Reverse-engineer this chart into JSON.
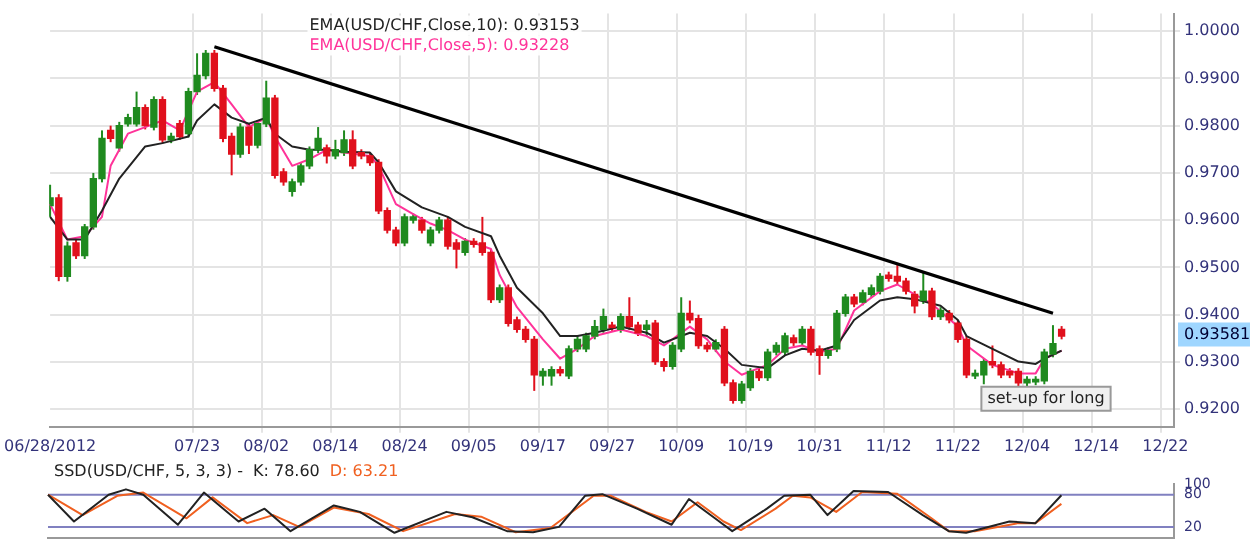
{
  "chart_data": [
    {
      "type": "candlestick",
      "legend": "top left",
      "grid": true,
      "marker": "none",
      "categories": [
        "06/28/2012",
        null,
        null,
        null,
        null,
        null,
        null,
        null,
        null,
        null,
        null,
        null,
        null,
        null,
        null,
        null,
        null,
        "07/23",
        null,
        null,
        null,
        null,
        null,
        null,
        null,
        "08/02",
        null,
        null,
        null,
        null,
        null,
        null,
        null,
        "08/14",
        null,
        null,
        null,
        null,
        null,
        null,
        null,
        "08/24",
        null,
        null,
        null,
        null,
        null,
        null,
        null,
        "09/05",
        null,
        null,
        null,
        null,
        null,
        null,
        null,
        "09/17",
        null,
        null,
        null,
        null,
        null,
        null,
        null,
        "09/27",
        null,
        null,
        null,
        null,
        null,
        null,
        null,
        "10/09",
        null,
        null,
        null,
        null,
        null,
        null,
        null,
        "10/19",
        null,
        null,
        null,
        null,
        null,
        null,
        null,
        "10/31",
        null,
        null,
        null,
        null,
        null,
        null,
        null,
        "11/12",
        null,
        null,
        null,
        null,
        null,
        null,
        null,
        "11/22",
        null,
        null,
        null,
        null,
        null,
        null,
        null,
        "12/04",
        null,
        null,
        null,
        null,
        null,
        null,
        null,
        "12/14",
        null,
        null,
        null,
        null,
        null,
        null,
        null,
        "12/22",
        null
      ],
      "ylim": [
        0.9163,
        1.0037
      ],
      "yticks": [
        {
          "value": 0.92,
          "label": "0.9200"
        },
        {
          "value": 0.93,
          "label": "0.9300"
        },
        {
          "value": 0.94,
          "label": "0.9400"
        },
        {
          "value": 0.95,
          "label": "0.9500"
        },
        {
          "value": 0.96,
          "label": "0.9600"
        },
        {
          "value": 0.97,
          "label": "0.9700"
        },
        {
          "value": 0.98,
          "label": "0.9800"
        },
        {
          "value": 0.99,
          "label": "0.9900"
        },
        {
          "value": 1.0,
          "label": "1.0000"
        }
      ],
      "ohlc": [
        [
          0.9631,
          0.9675,
          0.9607,
          0.9647
        ],
        [
          0.9647,
          0.9655,
          0.9471,
          0.9481
        ],
        [
          0.9481,
          0.9555,
          0.947,
          0.9545
        ],
        [
          0.9552,
          0.956,
          0.9518,
          0.9525
        ],
        [
          0.9525,
          0.9592,
          0.9518,
          0.9586
        ],
        [
          0.9586,
          0.97,
          0.958,
          0.9688
        ],
        [
          0.9688,
          0.979,
          0.968,
          0.9773
        ],
        [
          0.979,
          0.98,
          0.9765,
          0.9773
        ],
        [
          0.9753,
          0.9808,
          0.9745,
          0.98
        ],
        [
          0.9804,
          0.9825,
          0.9798,
          0.9817
        ],
        [
          0.9804,
          0.9872,
          0.9798,
          0.9838
        ],
        [
          0.9838,
          0.9845,
          0.9792,
          0.98
        ],
        [
          0.9797,
          0.9862,
          0.979,
          0.9855
        ],
        [
          0.9855,
          0.9862,
          0.9763,
          0.977
        ],
        [
          0.977,
          0.9785,
          0.9763,
          0.9777
        ],
        [
          0.9804,
          0.9812,
          0.977,
          0.9777
        ],
        [
          0.9783,
          0.988,
          0.9775,
          0.9872
        ],
        [
          0.9872,
          0.9953,
          0.9865,
          0.9906
        ],
        [
          0.9906,
          0.996,
          0.9898,
          0.9953
        ],
        [
          0.9953,
          0.996,
          0.9872,
          0.9879
        ],
        [
          0.9879,
          0.9886,
          0.9765,
          0.9773
        ],
        [
          0.9777,
          0.9785,
          0.9695,
          0.974
        ],
        [
          0.974,
          0.9805,
          0.9732,
          0.9797
        ],
        [
          0.9797,
          0.9805,
          0.974,
          0.9759
        ],
        [
          0.9759,
          0.9812,
          0.9752,
          0.9804
        ],
        [
          0.9804,
          0.9895,
          0.9797,
          0.9858
        ],
        [
          0.9858,
          0.9865,
          0.9688,
          0.9695
        ],
        [
          0.9702,
          0.971,
          0.9673,
          0.9681
        ],
        [
          0.9661,
          0.9688,
          0.965,
          0.9681
        ],
        [
          0.9681,
          0.9722,
          0.9673,
          0.9715
        ],
        [
          0.9715,
          0.9756,
          0.9708,
          0.9749
        ],
        [
          0.9749,
          0.9797,
          0.9742,
          0.9773
        ],
        [
          0.9753,
          0.976,
          0.972,
          0.9736
        ],
        [
          0.9736,
          0.977,
          0.9729,
          0.9749
        ],
        [
          0.9743,
          0.979,
          0.9736,
          0.977
        ],
        [
          0.977,
          0.979,
          0.9708,
          0.9715
        ],
        [
          0.9743,
          0.975,
          0.9729,
          0.9736
        ],
        [
          0.9736,
          0.9743,
          0.9715,
          0.9722
        ],
        [
          0.9722,
          0.9729,
          0.9613,
          0.962
        ],
        [
          0.962,
          0.9627,
          0.9572,
          0.9579
        ],
        [
          0.9579,
          0.9586,
          0.9545,
          0.9552
        ],
        [
          0.9552,
          0.9614,
          0.9545,
          0.9607
        ],
        [
          0.96,
          0.9614,
          0.9593,
          0.9607
        ],
        [
          0.96,
          0.9607,
          0.9572,
          0.9579
        ],
        [
          0.9552,
          0.9586,
          0.9545,
          0.9579
        ],
        [
          0.9579,
          0.9607,
          0.9572,
          0.96
        ],
        [
          0.96,
          0.9607,
          0.9538,
          0.9545
        ],
        [
          0.9552,
          0.956,
          0.9498,
          0.9539
        ],
        [
          0.9532,
          0.9562,
          0.9525,
          0.9555
        ],
        [
          0.9555,
          0.9562,
          0.9542,
          0.9549
        ],
        [
          0.9552,
          0.9607,
          0.9525,
          0.9532
        ],
        [
          0.9532,
          0.9539,
          0.9425,
          0.9432
        ],
        [
          0.9432,
          0.9464,
          0.9425,
          0.9457
        ],
        [
          0.9457,
          0.9464,
          0.9375,
          0.9382
        ],
        [
          0.9389,
          0.9396,
          0.9362,
          0.9369
        ],
        [
          0.9369,
          0.9376,
          0.9341,
          0.9348
        ],
        [
          0.9348,
          0.9355,
          0.9239,
          0.9273
        ],
        [
          0.9271,
          0.9287,
          0.925,
          0.928
        ],
        [
          0.9271,
          0.9291,
          0.925,
          0.9284
        ],
        [
          0.9284,
          0.9291,
          0.927,
          0.9277
        ],
        [
          0.9271,
          0.9335,
          0.9264,
          0.9328
        ],
        [
          0.9328,
          0.9355,
          0.9321,
          0.9348
        ],
        [
          0.9328,
          0.9362,
          0.9321,
          0.9355
        ],
        [
          0.9355,
          0.9389,
          0.9348,
          0.9375
        ],
        [
          0.9369,
          0.9413,
          0.9362,
          0.9396
        ],
        [
          0.9378,
          0.9385,
          0.9366,
          0.9373
        ],
        [
          0.9369,
          0.9403,
          0.9362,
          0.9396
        ],
        [
          0.9396,
          0.9437,
          0.9368,
          0.9375
        ],
        [
          0.9378,
          0.9385,
          0.9355,
          0.9362
        ],
        [
          0.9369,
          0.9389,
          0.9355,
          0.9378
        ],
        [
          0.9382,
          0.9389,
          0.9294,
          0.9301
        ],
        [
          0.9301,
          0.9308,
          0.928,
          0.9291
        ],
        [
          0.9291,
          0.9342,
          0.9284,
          0.9335
        ],
        [
          0.9328,
          0.9437,
          0.9321,
          0.9403
        ],
        [
          0.9403,
          0.943,
          0.9382,
          0.9389
        ],
        [
          0.9392,
          0.94,
          0.9328,
          0.9335
        ],
        [
          0.9335,
          0.9342,
          0.9321,
          0.9328
        ],
        [
          0.9328,
          0.9348,
          0.9321,
          0.9341
        ],
        [
          0.9369,
          0.9376,
          0.9249,
          0.9256
        ],
        [
          0.9256,
          0.9263,
          0.9212,
          0.9219
        ],
        [
          0.9219,
          0.926,
          0.9212,
          0.9253
        ],
        [
          0.9246,
          0.9287,
          0.9239,
          0.928
        ],
        [
          0.928,
          0.9287,
          0.926,
          0.9267
        ],
        [
          0.9267,
          0.9328,
          0.926,
          0.9321
        ],
        [
          0.9321,
          0.9342,
          0.9314,
          0.9335
        ],
        [
          0.9321,
          0.9362,
          0.9314,
          0.9355
        ],
        [
          0.9351,
          0.9358,
          0.9334,
          0.9341
        ],
        [
          0.9341,
          0.9376,
          0.9334,
          0.9369
        ],
        [
          0.9369,
          0.9376,
          0.9314,
          0.9321
        ],
        [
          0.9328,
          0.9335,
          0.9273,
          0.9314
        ],
        [
          0.9314,
          0.9331,
          0.9307,
          0.9324
        ],
        [
          0.9328,
          0.941,
          0.9321,
          0.9403
        ],
        [
          0.9403,
          0.9444,
          0.9396,
          0.9437
        ],
        [
          0.9437,
          0.9444,
          0.9416,
          0.9423
        ],
        [
          0.9427,
          0.9453,
          0.942,
          0.9446
        ],
        [
          0.9443,
          0.9464,
          0.9436,
          0.9457
        ],
        [
          0.945,
          0.9488,
          0.9443,
          0.9481
        ],
        [
          0.9484,
          0.9491,
          0.947,
          0.9477
        ],
        [
          0.9481,
          0.9505,
          0.9464,
          0.9471
        ],
        [
          0.9471,
          0.9478,
          0.9443,
          0.945
        ],
        [
          0.9443,
          0.945,
          0.9403,
          0.9419
        ],
        [
          0.943,
          0.9491,
          0.9423,
          0.945
        ],
        [
          0.945,
          0.9457,
          0.9389,
          0.9396
        ],
        [
          0.9396,
          0.9416,
          0.9389,
          0.9409
        ],
        [
          0.9403,
          0.941,
          0.9382,
          0.9389
        ],
        [
          0.9382,
          0.9389,
          0.9341,
          0.9348
        ],
        [
          0.9348,
          0.9355,
          0.9266,
          0.9273
        ],
        [
          0.9271,
          0.9284,
          0.9264,
          0.9276
        ],
        [
          0.9273,
          0.9308,
          0.9253,
          0.9301
        ],
        [
          0.9301,
          0.9335,
          0.9287,
          0.9294
        ],
        [
          0.9294,
          0.9301,
          0.9266,
          0.9273
        ],
        [
          0.928,
          0.9287,
          0.9266,
          0.9273
        ],
        [
          0.928,
          0.9287,
          0.9249,
          0.9256
        ],
        [
          0.9256,
          0.927,
          0.9249,
          0.9263
        ],
        [
          0.9258,
          0.927,
          0.9251,
          0.9263
        ],
        [
          0.926,
          0.9328,
          0.9253,
          0.9321
        ],
        [
          0.9317,
          0.9378,
          0.931,
          0.9339
        ],
        [
          0.9369,
          0.9376,
          0.9348,
          0.9355
        ],
        null,
        null,
        null,
        null,
        null,
        null,
        null,
        null,
        null,
        null,
        null,
        null,
        null
      ],
      "colors": [
        "#1f8a1f",
        "#e0101c",
        "#1f8a1f",
        "#e0101c",
        "#1f8a1f",
        "#1f8a1f",
        "#1f8a1f",
        "#e0101c",
        "#1f8a1f",
        "#1f8a1f",
        "#1f8a1f",
        "#e0101c",
        "#1f8a1f",
        "#e0101c",
        "#1f8a1f",
        "#e0101c",
        "#1f8a1f",
        "#1f8a1f",
        "#1f8a1f",
        "#e0101c",
        "#e0101c",
        "#e0101c",
        "#1f8a1f",
        "#e0101c",
        "#1f8a1f",
        "#1f8a1f",
        "#e0101c",
        "#e0101c",
        "#1f8a1f",
        "#1f8a1f",
        "#1f8a1f",
        "#1f8a1f",
        "#e0101c",
        "#1f8a1f",
        "#1f8a1f",
        "#e0101c",
        "#e0101c",
        "#e0101c",
        "#e0101c",
        "#e0101c",
        "#e0101c",
        "#1f8a1f",
        "#1f8a1f",
        "#e0101c",
        "#1f8a1f",
        "#1f8a1f",
        "#e0101c",
        "#e0101c",
        "#1f8a1f",
        "#e0101c",
        "#e0101c",
        "#e0101c",
        "#1f8a1f",
        "#e0101c",
        "#e0101c",
        "#e0101c",
        "#e0101c",
        "#1f8a1f",
        "#1f8a1f",
        "#e0101c",
        "#1f8a1f",
        "#1f8a1f",
        "#1f8a1f",
        "#1f8a1f",
        "#1f8a1f",
        "#e0101c",
        "#1f8a1f",
        "#e0101c",
        "#e0101c",
        "#1f8a1f",
        "#e0101c",
        "#e0101c",
        "#1f8a1f",
        "#1f8a1f",
        "#e0101c",
        "#e0101c",
        "#e0101c",
        "#1f8a1f",
        "#e0101c",
        "#e0101c",
        "#1f8a1f",
        "#1f8a1f",
        "#e0101c",
        "#1f8a1f",
        "#1f8a1f",
        "#1f8a1f",
        "#e0101c",
        "#1f8a1f",
        "#e0101c",
        "#e0101c",
        "#1f8a1f",
        "#1f8a1f",
        "#1f8a1f",
        "#e0101c",
        "#1f8a1f",
        "#1f8a1f",
        "#1f8a1f",
        "#e0101c",
        "#e0101c",
        "#e0101c",
        "#e0101c",
        "#1f8a1f",
        "#e0101c",
        "#1f8a1f",
        "#e0101c",
        "#e0101c",
        "#e0101c",
        "#1f8a1f",
        "#1f8a1f",
        "#e0101c",
        "#e0101c",
        "#e0101c",
        "#e0101c",
        "#1f8a1f",
        "#1f8a1f",
        "#1f8a1f",
        "#1f8a1f",
        "#e0101c",
        null,
        null,
        null,
        null,
        null,
        null,
        null,
        null,
        null,
        null,
        null,
        null,
        null
      ],
      "series": [
        {
          "name": "EMA(USD/CHF,Close,10): 0.93153",
          "color": "#222222",
          "type": "line",
          "values": [
            0.9607,
            null,
            0.9559,
            null,
            0.9559,
            null,
            0.962,
            null,
            0.9688,
            null,
            null,
            0.9756,
            null,
            0.9763,
            null,
            null,
            0.9777,
            0.9811,
            null,
            0.9845,
            null,
            0.9817,
            null,
            0.9804,
            null,
            0.9817,
            0.9783,
            null,
            0.9756,
            null,
            0.9749,
            null,
            0.9749,
            null,
            0.9745,
            null,
            null,
            0.9743,
            0.9722,
            null,
            0.9661,
            null,
            null,
            0.9627,
            null,
            null,
            0.9607,
            null,
            0.9586,
            null,
            null,
            0.9566,
            0.9525,
            null,
            0.9457,
            null,
            null,
            0.9403,
            null,
            0.9355,
            null,
            0.9355,
            null,
            0.9362,
            null,
            null,
            0.9375,
            null,
            null,
            0.9362,
            null,
            0.9341,
            null,
            null,
            0.9362,
            null,
            0.9355,
            null,
            0.9328,
            null,
            0.9294,
            null,
            null,
            0.9287,
            null,
            0.9314,
            null,
            0.9328,
            null,
            0.9324,
            null,
            0.9335,
            null,
            0.9389,
            null,
            null,
            0.943,
            null,
            0.9437,
            null,
            0.9433,
            null,
            null,
            0.9419,
            null,
            0.9389,
            0.9355,
            null,
            null,
            0.9328,
            null,
            null,
            0.9301,
            null,
            0.9296,
            0.9307,
            null,
            0.9324,
            null,
            null,
            null,
            null,
            null,
            null,
            null,
            null,
            null,
            null,
            null,
            null,
            null
          ]
        },
        {
          "name": "EMA(USD/CHF,Close,5): 0.93228",
          "color": "#ff3399",
          "type": "line",
          "values": [
            0.9634,
            null,
            0.9559,
            null,
            0.9566,
            null,
            0.9607,
            0.9715,
            null,
            0.9783,
            null,
            0.9797,
            null,
            0.9811,
            null,
            0.979,
            null,
            0.9872,
            null,
            0.9892,
            null,
            0.9845,
            null,
            0.9797,
            null,
            0.9817,
            0.9777,
            null,
            0.9715,
            null,
            0.9729,
            null,
            0.9749,
            null,
            0.9743,
            null,
            null,
            0.9736,
            0.9715,
            null,
            0.9634,
            null,
            0.9613,
            null,
            0.9593,
            null,
            0.9579,
            null,
            0.9559,
            null,
            null,
            0.9539,
            0.9484,
            null,
            0.9416,
            null,
            null,
            0.9348,
            null,
            0.9307,
            null,
            0.9328,
            null,
            0.9355,
            null,
            null,
            0.9369,
            null,
            null,
            0.9355,
            null,
            0.9335,
            null,
            null,
            0.9375,
            null,
            0.9348,
            null,
            0.9301,
            null,
            0.9273,
            null,
            null,
            0.9294,
            null,
            0.9328,
            null,
            0.9335,
            null,
            0.9321,
            null,
            0.9328,
            null,
            0.9409,
            null,
            null,
            0.945,
            null,
            0.9464,
            null,
            0.9443,
            null,
            0.9423,
            null,
            null,
            0.9375,
            0.9335,
            null,
            null,
            0.9294,
            null,
            null,
            0.9276,
            null,
            0.9276,
            0.9307,
            null,
            0.9324,
            null,
            null,
            null,
            null,
            null,
            null,
            null,
            null,
            null,
            null,
            null,
            null,
            null
          ]
        },
        {
          "color": "#000000",
          "type": "line",
          "values": [
            null,
            null,
            null,
            null,
            null,
            null,
            null,
            null,
            null,
            null,
            null,
            null,
            null,
            null,
            null,
            null,
            null,
            null,
            null,
            0.9967,
            null,
            null,
            null,
            null,
            null,
            null,
            null,
            null,
            null,
            null,
            null,
            null,
            null,
            null,
            null,
            null,
            null,
            null,
            null,
            null,
            null,
            null,
            null,
            null,
            null,
            null,
            null,
            null,
            null,
            null,
            null,
            null,
            null,
            null,
            null,
            null,
            null,
            null,
            null,
            null,
            null,
            null,
            null,
            null,
            null,
            null,
            null,
            null,
            null,
            null,
            null,
            null,
            null,
            null,
            null,
            null,
            null,
            null,
            null,
            null,
            null,
            null,
            null,
            null,
            null,
            null,
            null,
            null,
            null,
            null,
            null,
            null,
            null,
            null,
            null,
            null,
            null,
            null,
            null,
            null,
            null,
            null,
            null,
            null,
            null,
            null,
            null,
            null,
            null,
            null,
            null,
            null,
            null,
            null,
            null,
            null,
            0.9403,
            null,
            null,
            null,
            null,
            null,
            null,
            null,
            null,
            null,
            null,
            null,
            null,
            null,
            null
          ]
        }
      ],
      "annotations": [
        "set-up for long",
        {
          "text": "0.93581",
          "y": 0.93581
        }
      ]
    },
    {
      "type": "line",
      "title": "SSD(USD/CHF, 5, 3, 3) -",
      "legend": "top left",
      "grid": false,
      "marker": "none",
      "tick_labels": "y",
      "ylim": [
        0,
        100
      ],
      "yticks": [
        20,
        80,
        100
      ],
      "ref_lines": [
        {
          "axis": "y",
          "value": 80,
          "color": "#8080c0"
        },
        {
          "axis": "y",
          "value": 20,
          "color": "#8080c0"
        }
      ],
      "series": [
        {
          "name": "K: 78.60",
          "color": "#222222",
          "values": [
            80,
            null,
            null,
            30,
            null,
            null,
            null,
            80,
            null,
            90,
            null,
            80,
            null,
            null,
            null,
            24,
            null,
            null,
            84,
            null,
            null,
            null,
            30,
            null,
            null,
            54,
            null,
            null,
            12,
            null,
            null,
            null,
            null,
            60,
            null,
            null,
            48,
            null,
            null,
            null,
            9,
            null,
            null,
            null,
            null,
            null,
            48,
            null,
            null,
            38,
            null,
            null,
            null,
            12,
            null,
            null,
            10,
            null,
            null,
            20,
            null,
            null,
            78,
            null,
            81,
            null,
            null,
            null,
            54,
            null,
            null,
            null,
            24,
            null,
            72,
            null,
            null,
            36,
            null,
            12,
            null,
            null,
            null,
            54,
            null,
            78,
            null,
            null,
            80,
            null,
            42,
            null,
            null,
            87,
            null,
            null,
            null,
            85,
            null,
            null,
            null,
            42,
            null,
            null,
            12,
            null,
            9,
            null,
            null,
            null,
            null,
            30,
            null,
            null,
            27,
            null,
            null,
            79,
            null,
            null,
            null,
            null,
            null,
            null,
            null,
            null,
            null,
            null,
            null,
            null,
            null
          ]
        },
        {
          "name": "D: 63.21",
          "color": "#f06020",
          "values": [
            80,
            null,
            null,
            null,
            42,
            null,
            null,
            null,
            78,
            null,
            null,
            84,
            null,
            null,
            null,
            null,
            36,
            null,
            null,
            75,
            null,
            null,
            null,
            27,
            null,
            null,
            42,
            null,
            null,
            20,
            null,
            null,
            null,
            56,
            null,
            null,
            null,
            44,
            null,
            null,
            null,
            12,
            null,
            null,
            null,
            null,
            null,
            44,
            null,
            null,
            39,
            null,
            null,
            null,
            10,
            null,
            null,
            null,
            18,
            null,
            null,
            null,
            null,
            78,
            null,
            78,
            null,
            null,
            null,
            48,
            null,
            null,
            30,
            null,
            null,
            66,
            null,
            null,
            30,
            null,
            14,
            null,
            null,
            null,
            54,
            null,
            78,
            null,
            75,
            null,
            null,
            48,
            null,
            null,
            85,
            null,
            null,
            null,
            82,
            null,
            null,
            null,
            36,
            null,
            12,
            null,
            null,
            12,
            null,
            null,
            null,
            null,
            27,
            null,
            27,
            null,
            null,
            63,
            null,
            null,
            null,
            null,
            null,
            null,
            null,
            null,
            null,
            null,
            null,
            null,
            null
          ]
        }
      ]
    }
  ]
}
